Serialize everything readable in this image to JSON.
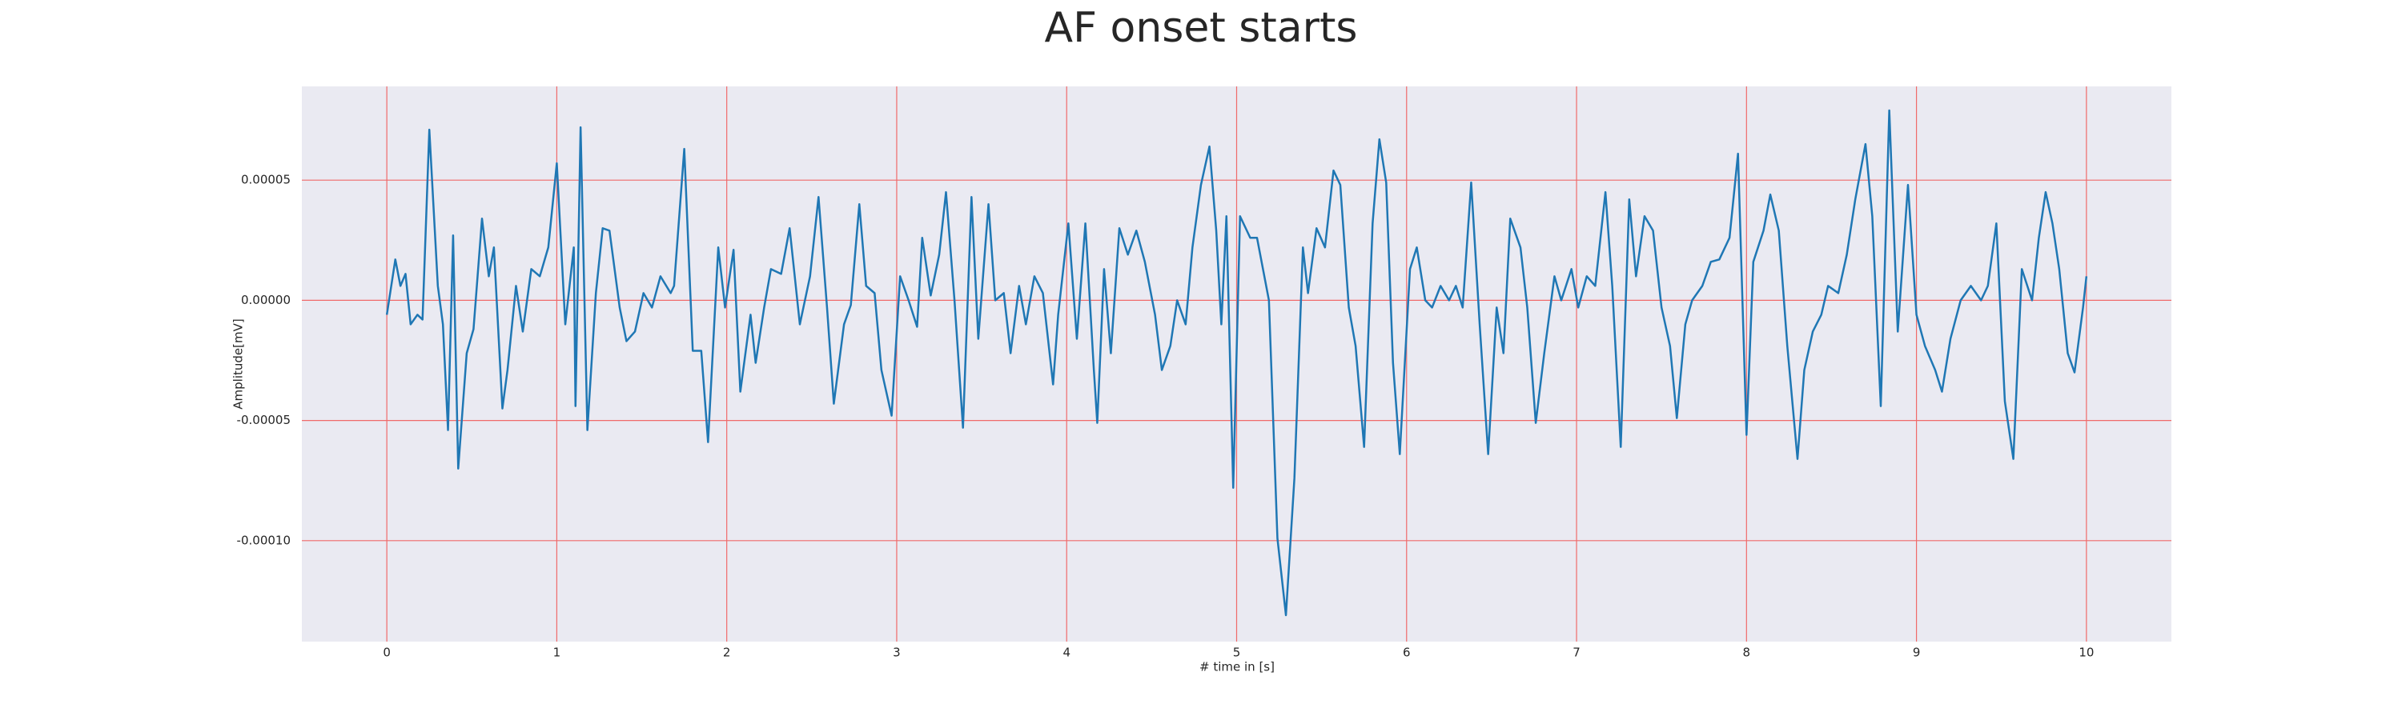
{
  "chart_data": {
    "type": "line",
    "title": "AF onset starts",
    "xlabel": "# time in [s]",
    "ylabel": "Amplitude[mV]",
    "color": "#1f77b4",
    "grid": true,
    "grid_color": "#f06a6a",
    "background": "#eaeaf2",
    "xlim": [
      -0.5,
      10.5
    ],
    "ylim": [
      -0.000142,
      8.9e-05
    ],
    "xticks": [
      0,
      1,
      2,
      3,
      4,
      5,
      6,
      7,
      8,
      9,
      10
    ],
    "yticks": [
      {
        "value": 5e-05,
        "label": "0.00005"
      },
      {
        "value": 0,
        "label": "0.00000"
      },
      {
        "value": -5e-05,
        "label": "-0.00005"
      },
      {
        "value": -0.0001,
        "label": "-0.00010"
      }
    ],
    "x": [
      0,
      0.05,
      0.08,
      0.11,
      0.14,
      0.18,
      0.21,
      0.25,
      0.3,
      0.33,
      0.36,
      0.39,
      0.42,
      0.47,
      0.51,
      0.56,
      0.6,
      0.63,
      0.68,
      0.71,
      0.76,
      0.8,
      0.85,
      0.9,
      0.95,
      1.0,
      1.05,
      1.1,
      1.11,
      1.14,
      1.18,
      1.23,
      1.27,
      1.31,
      1.37,
      1.41,
      1.46,
      1.51,
      1.56,
      1.61,
      1.67,
      1.69,
      1.75,
      1.8,
      1.85,
      1.89,
      1.95,
      1.99,
      2.04,
      2.08,
      2.14,
      2.17,
      2.22,
      2.26,
      2.32,
      2.37,
      2.43,
      2.49,
      2.54,
      2.59,
      2.63,
      2.69,
      2.73,
      2.78,
      2.82,
      2.87,
      2.91,
      2.97,
      3.02,
      3.07,
      3.12,
      3.15,
      3.2,
      3.25,
      3.29,
      3.34,
      3.39,
      3.44,
      3.48,
      3.54,
      3.58,
      3.63,
      3.67,
      3.72,
      3.76,
      3.81,
      3.86,
      3.92,
      3.95,
      4.01,
      4.06,
      4.11,
      4.16,
      4.18,
      4.22,
      4.26,
      4.31,
      4.36,
      4.41,
      4.46,
      4.52,
      4.56,
      4.61,
      4.65,
      4.7,
      4.74,
      4.79,
      4.84,
      4.88,
      4.91,
      4.94,
      4.98,
      5.02,
      5.08,
      5.12,
      5.19,
      5.24,
      5.29,
      5.34,
      5.39,
      5.42,
      5.47,
      5.52,
      5.57,
      5.61,
      5.66,
      5.7,
      5.75,
      5.8,
      5.84,
      5.88,
      5.92,
      5.96,
      6.02,
      6.06,
      6.11,
      6.15,
      6.2,
      6.25,
      6.29,
      6.33,
      6.38,
      6.43,
      6.48,
      6.53,
      6.57,
      6.61,
      6.67,
      6.71,
      6.76,
      6.81,
      6.87,
      6.91,
      6.97,
      7.01,
      7.06,
      7.11,
      7.17,
      7.21,
      7.26,
      7.31,
      7.35,
      7.4,
      7.45,
      7.5,
      7.55,
      7.59,
      7.64,
      7.68,
      7.74,
      7.79,
      7.84,
      7.9,
      7.95,
      8.0,
      8.04,
      8.1,
      8.14,
      8.19,
      8.24,
      8.3,
      8.34,
      8.39,
      8.44,
      8.48,
      8.54,
      8.59,
      8.64,
      8.7,
      8.74,
      8.79,
      8.84,
      8.89,
      8.95,
      9.0,
      9.05,
      9.11,
      9.15,
      9.2,
      9.26,
      9.32,
      9.38,
      9.42,
      9.47,
      9.52,
      9.57,
      9.62,
      9.68,
      9.72,
      9.76,
      9.8,
      9.84,
      9.89,
      9.93,
      9.98,
      10.0
    ],
    "values": [
      -6e-06,
      1.7e-05,
      6e-06,
      1.1e-05,
      -1e-05,
      -6e-06,
      -8e-06,
      7.1e-05,
      6e-06,
      -1e-05,
      -5.4e-05,
      2.7e-05,
      -7e-05,
      -2.2e-05,
      -1.2e-05,
      3.4e-05,
      1e-05,
      2.2e-05,
      -4.5e-05,
      -2.9e-05,
      6e-06,
      -1.3e-05,
      1.3e-05,
      1e-05,
      2.2e-05,
      5.7e-05,
      -1e-05,
      2.2e-05,
      -4.4e-05,
      7.2e-05,
      -5.4e-05,
      3e-06,
      3e-05,
      2.9e-05,
      -3e-06,
      -1.7e-05,
      -1.3e-05,
      3e-06,
      -3e-06,
      1e-05,
      3e-06,
      6e-06,
      6.3e-05,
      -2.1e-05,
      -2.1e-05,
      -5.9e-05,
      2.2e-05,
      -3e-06,
      2.1e-05,
      -3.8e-05,
      -6e-06,
      -2.6e-05,
      -3e-06,
      1.3e-05,
      1.1e-05,
      3e-05,
      -1e-05,
      1e-05,
      4.3e-05,
      -3e-06,
      -4.3e-05,
      -1e-05,
      -2e-06,
      4e-05,
      6e-06,
      3e-06,
      -2.9e-05,
      -4.8e-05,
      1e-05,
      0,
      -1.1e-05,
      2.6e-05,
      2e-06,
      1.9e-05,
      4.5e-05,
      0,
      -5.3e-05,
      4.3e-05,
      -1.6e-05,
      4e-05,
      0,
      3e-06,
      -2.2e-05,
      6e-06,
      -1e-05,
      1e-05,
      3e-06,
      -3.5e-05,
      -6e-06,
      3.2e-05,
      -1.6e-05,
      3.2e-05,
      -2.9e-05,
      -5.1e-05,
      1.3e-05,
      -2.2e-05,
      3e-05,
      1.9e-05,
      2.9e-05,
      1.6e-05,
      -6e-06,
      -2.9e-05,
      -1.9e-05,
      0,
      -1e-05,
      2.2e-05,
      4.8e-05,
      6.4e-05,
      2.9e-05,
      -1e-05,
      3.5e-05,
      -7.8e-05,
      3.5e-05,
      2.6e-05,
      2.6e-05,
      0,
      -9.9e-05,
      -0.000131,
      -7.4e-05,
      2.2e-05,
      3e-06,
      3e-05,
      2.2e-05,
      5.4e-05,
      4.8e-05,
      -3e-06,
      -1.9e-05,
      -6.1e-05,
      3.2e-05,
      6.7e-05,
      4.9e-05,
      -2.6e-05,
      -6.4e-05,
      1.3e-05,
      2.2e-05,
      0,
      -3e-06,
      6e-06,
      0,
      6e-06,
      -3e-06,
      4.9e-05,
      -1e-05,
      -6.4e-05,
      -3e-06,
      -2.2e-05,
      3.4e-05,
      2.2e-05,
      -3e-06,
      -5.1e-05,
      -2.2e-05,
      1e-05,
      0,
      1.3e-05,
      -3e-06,
      1e-05,
      6e-06,
      4.5e-05,
      6e-06,
      -6.1e-05,
      4.2e-05,
      1e-05,
      3.5e-05,
      2.9e-05,
      -3e-06,
      -1.9e-05,
      -4.9e-05,
      -1e-05,
      0,
      6e-06,
      1.6e-05,
      1.7e-05,
      2.6e-05,
      6.1e-05,
      -5.6e-05,
      1.6e-05,
      2.9e-05,
      4.4e-05,
      2.9e-05,
      -1.9e-05,
      -6.6e-05,
      -2.9e-05,
      -1.3e-05,
      -6e-06,
      6e-06,
      3e-06,
      1.9e-05,
      4.2e-05,
      6.5e-05,
      3.5e-05,
      -4.4e-05,
      7.9e-05,
      -1.3e-05,
      4.8e-05,
      -6e-06,
      -1.9e-05,
      -2.9e-05,
      -3.8e-05,
      -1.6e-05,
      0,
      6e-06,
      0,
      6e-06,
      3.2e-05,
      -4.2e-05,
      -6.6e-05,
      1.3e-05,
      0,
      2.6e-05,
      4.5e-05,
      3.2e-05,
      1.3e-05,
      -2.2e-05,
      -3e-05,
      -3e-06,
      1e-05
    ]
  }
}
